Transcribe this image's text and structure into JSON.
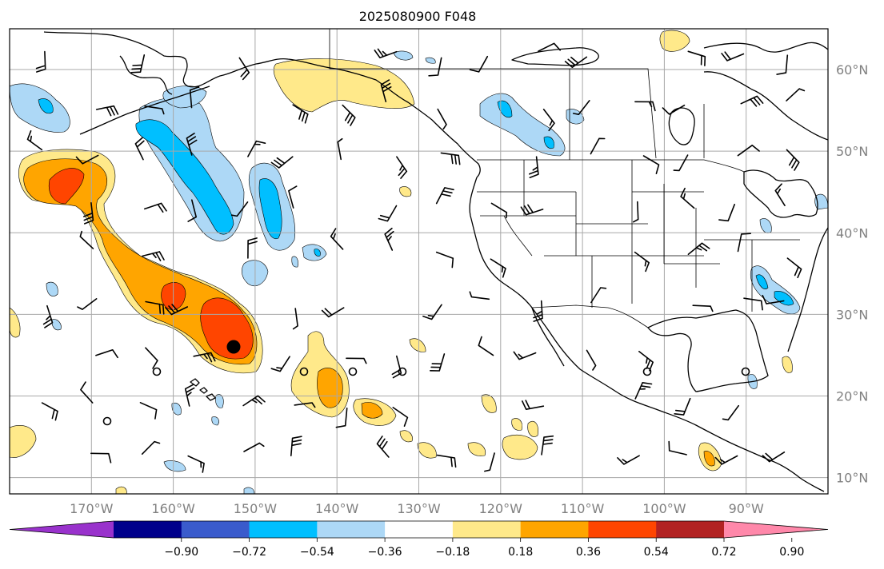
{
  "title": "2025080900 F048",
  "map": {
    "lon_ticks": [
      "170°W",
      "160°W",
      "150°W",
      "140°W",
      "130°W",
      "120°W",
      "110°W",
      "100°W",
      "90°W"
    ],
    "lat_ticks": [
      "60°N",
      "50°N",
      "40°N",
      "30°N",
      "20°N",
      "10°N"
    ],
    "lon_values": [
      -170,
      -160,
      -150,
      -140,
      -130,
      -120,
      -110,
      -100,
      -90
    ],
    "lat_values": [
      60,
      50,
      40,
      30,
      20,
      10
    ],
    "lon_range": [
      -180,
      -80
    ],
    "lat_range": [
      8,
      65
    ],
    "grid": true
  },
  "colorbar": {
    "labels": [
      "−0.90",
      "−0.72",
      "−0.54",
      "−0.36",
      "−0.18",
      "0.18",
      "0.36",
      "0.54",
      "0.72",
      "0.90"
    ],
    "colors": [
      "#9932cc",
      "#00008b",
      "#3a5bcc",
      "#00bfff",
      "#add8f6",
      "#ffffff",
      "#ffe98a",
      "#ffa500",
      "#ff4500",
      "#b22222",
      "#ff88aa"
    ],
    "extend": "both"
  },
  "markers": {
    "filled_dot_color": "#000000",
    "open_circle_color": "#000000"
  }
}
